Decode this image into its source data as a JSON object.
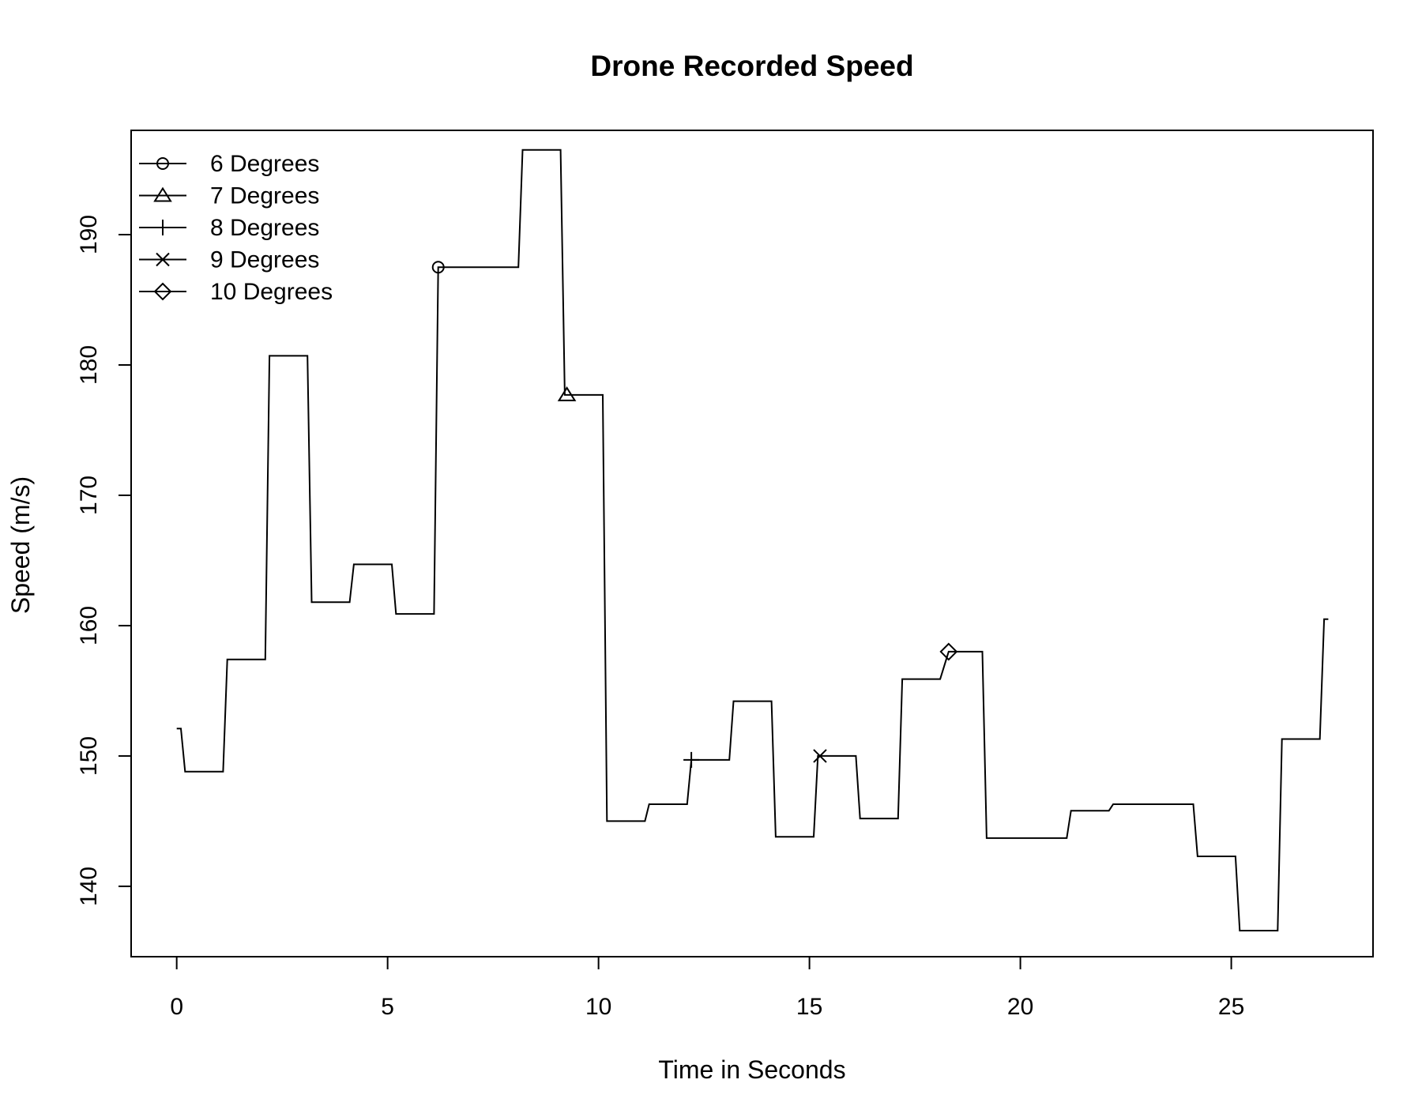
{
  "chart_data": {
    "type": "line",
    "title": "Drone Recorded Speed",
    "xlabel": "Time in Seconds",
    "ylabel": "Speed (m/s)",
    "xlim": [
      -1.08,
      28.36
    ],
    "ylim": [
      134.6,
      198.0
    ],
    "x_ticks": [
      0,
      5,
      10,
      15,
      20,
      25
    ],
    "y_ticks": [
      140,
      150,
      160,
      170,
      180,
      190
    ],
    "grid": false,
    "legend_position": "top-left",
    "legend": [
      {
        "label": "6 Degrees",
        "marker": "circle"
      },
      {
        "label": "7 Degrees",
        "marker": "triangle"
      },
      {
        "label": "8 Degrees",
        "marker": "plus"
      },
      {
        "label": "9 Degrees",
        "marker": "cross"
      },
      {
        "label": "10 Degrees",
        "marker": "diamond"
      }
    ],
    "series": [
      {
        "x": [
          0.0,
          0.1,
          0.2,
          1.1,
          1.2,
          2.1,
          2.2,
          3.1,
          3.2,
          4.1,
          4.2,
          5.1,
          5.2,
          6.1,
          6.2,
          8.1,
          8.2,
          9.1,
          9.2,
          10.1,
          10.2,
          11.1,
          11.2,
          12.1,
          12.2,
          13.1,
          13.2,
          14.1,
          14.2,
          15.1,
          15.2,
          16.1,
          16.2,
          17.1,
          17.2,
          18.1,
          18.3,
          19.1,
          19.2,
          20.0,
          21.1,
          21.2,
          22.1,
          22.2,
          23.0,
          24.1,
          24.2,
          25.1,
          25.2,
          26.1,
          26.2,
          27.1,
          27.2,
          27.3
        ],
        "y": [
          152.1,
          152.1,
          148.8,
          148.8,
          157.4,
          157.4,
          180.7,
          180.7,
          161.8,
          161.8,
          164.7,
          164.7,
          160.9,
          160.9,
          187.5,
          187.5,
          196.5,
          196.5,
          177.7,
          177.7,
          145.0,
          145.0,
          146.3,
          146.3,
          149.7,
          149.7,
          154.2,
          154.2,
          143.8,
          143.8,
          150.0,
          150.0,
          145.2,
          145.2,
          155.9,
          155.9,
          158.0,
          158.0,
          143.7,
          143.7,
          143.7,
          145.8,
          145.8,
          146.3,
          146.3,
          146.3,
          142.3,
          142.3,
          136.6,
          136.6,
          151.3,
          151.3,
          160.5,
          160.5
        ]
      }
    ],
    "markers": [
      {
        "shape": "circle",
        "x": 6.2,
        "y": 187.5
      },
      {
        "shape": "triangle",
        "x": 9.25,
        "y": 177.7
      },
      {
        "shape": "plus",
        "x": 12.2,
        "y": 149.7
      },
      {
        "shape": "cross",
        "x": 15.25,
        "y": 150.0
      },
      {
        "shape": "diamond",
        "x": 18.3,
        "y": 158.0
      }
    ]
  }
}
